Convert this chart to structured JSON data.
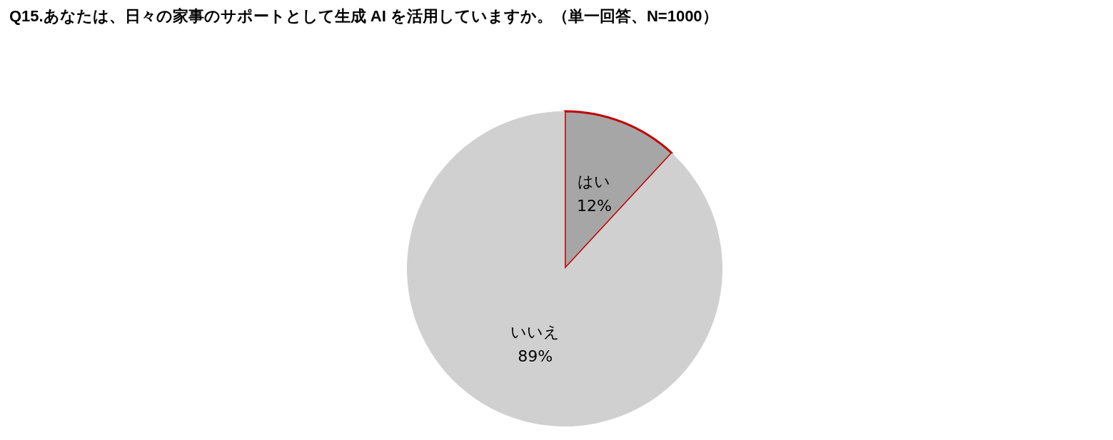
{
  "chart_data": {
    "type": "pie",
    "title": "Q15.あなたは、日々の家事のサポートとして生成 AI を活用していますか。（単一回答、N=1000）",
    "categories": [
      "はい",
      "いいえ"
    ],
    "values": [
      12,
      89
    ],
    "value_labels": [
      "12%",
      "89%"
    ],
    "colors": [
      "#a6a6a6",
      "#d0d0d0"
    ],
    "legend": false
  }
}
